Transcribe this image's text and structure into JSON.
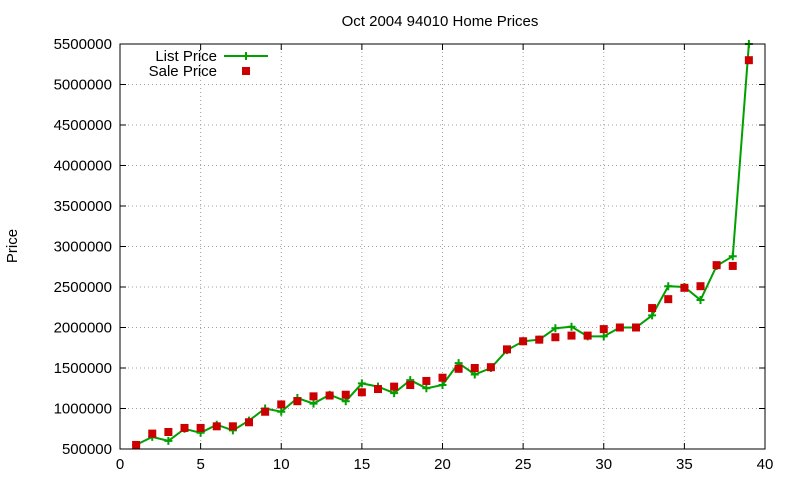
{
  "chart_data": {
    "type": "line",
    "title": "Oct 2004 94010 Home Prices",
    "xlabel": "",
    "ylabel": "Price",
    "xlim": [
      0,
      40
    ],
    "ylim": [
      500000,
      5500000
    ],
    "xticks": [
      0,
      5,
      10,
      15,
      20,
      25,
      30,
      35,
      40
    ],
    "yticks": [
      500000,
      1000000,
      1500000,
      2000000,
      2500000,
      3000000,
      3500000,
      4000000,
      4500000,
      5000000,
      5500000
    ],
    "grid": true,
    "legend_position": "top-left",
    "series": [
      {
        "name": "List Price",
        "style": "line-with-plus-markers",
        "color": "#00a000",
        "x": [
          1,
          2,
          3,
          4,
          5,
          6,
          7,
          8,
          9,
          10,
          11,
          12,
          13,
          14,
          15,
          16,
          17,
          18,
          19,
          20,
          21,
          22,
          23,
          24,
          25,
          26,
          27,
          28,
          29,
          30,
          31,
          32,
          33,
          34,
          35,
          36,
          37,
          38,
          39
        ],
        "values": [
          550000,
          650000,
          600000,
          750000,
          700000,
          800000,
          730000,
          850000,
          1000000,
          960000,
          1130000,
          1060000,
          1170000,
          1090000,
          1310000,
          1270000,
          1190000,
          1350000,
          1250000,
          1290000,
          1560000,
          1420000,
          1500000,
          1720000,
          1830000,
          1850000,
          1990000,
          2010000,
          1890000,
          1890000,
          2000000,
          2000000,
          2150000,
          2510000,
          2500000,
          2340000,
          2760000,
          2880000,
          5500000
        ]
      },
      {
        "name": "Sale Price",
        "style": "square-markers",
        "color": "#cc0000",
        "x": [
          1,
          2,
          3,
          4,
          5,
          6,
          7,
          8,
          9,
          10,
          11,
          12,
          13,
          14,
          15,
          16,
          17,
          18,
          19,
          20,
          21,
          22,
          23,
          24,
          25,
          26,
          27,
          28,
          29,
          30,
          31,
          32,
          33,
          34,
          35,
          36,
          37,
          38,
          39
        ],
        "values": [
          550000,
          690000,
          710000,
          760000,
          760000,
          780000,
          780000,
          830000,
          960000,
          1050000,
          1090000,
          1150000,
          1160000,
          1170000,
          1200000,
          1240000,
          1270000,
          1290000,
          1340000,
          1380000,
          1490000,
          1500000,
          1510000,
          1730000,
          1830000,
          1850000,
          1880000,
          1900000,
          1900000,
          1980000,
          2000000,
          2000000,
          2240000,
          2350000,
          2490000,
          2510000,
          2770000,
          2760000,
          5300000
        ]
      }
    ]
  }
}
